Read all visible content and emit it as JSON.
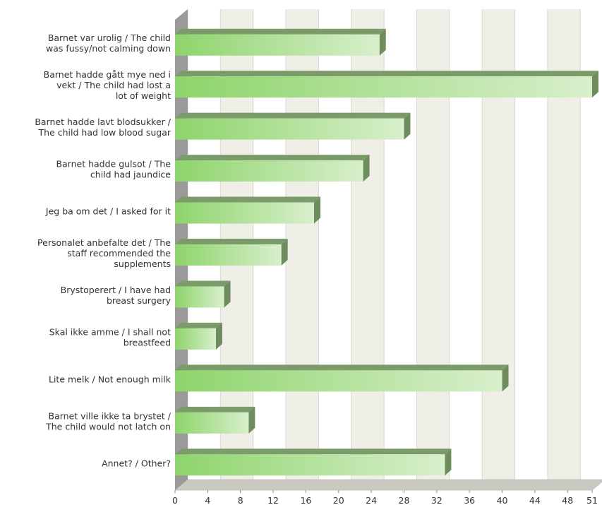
{
  "chart_data": {
    "type": "bar",
    "orientation": "horizontal",
    "style": "3d",
    "categories": [
      [
        "Barnet var urolig / The child",
        "was fussy/not calming down"
      ],
      [
        "Barnet hadde gått mye ned i",
        "vekt / The child had lost a",
        "lot of weight"
      ],
      [
        "Barnet hadde lavt blodsukker /",
        "The child had low blood sugar"
      ],
      [
        "Barnet hadde gulsot / The",
        "child had jaundice"
      ],
      [
        "Jeg ba om det / I asked for it"
      ],
      [
        "Personalet anbefalte det / The",
        "staff recommended the",
        "supplements"
      ],
      [
        "Brystoperert / I have had",
        "breast surgery"
      ],
      [
        "Skal ikke amme / I shall not",
        "breastfeed"
      ],
      [
        "Lite melk / Not enough milk"
      ],
      [
        "Barnet ville ikke ta brystet /",
        "The child would not latch on"
      ],
      [
        "Annet? / Other?"
      ]
    ],
    "values": [
      25,
      51,
      28,
      23,
      17,
      13,
      6,
      5,
      40,
      9,
      33
    ],
    "xticks": [
      "0",
      "4",
      "8",
      "12",
      "16",
      "20",
      "24",
      "28",
      "32",
      "36",
      "40",
      "44",
      "48",
      "51"
    ],
    "xlim": [
      0,
      51
    ],
    "grid": true,
    "colors": {
      "bar_light": "#d8efcc",
      "bar_dark": "#8ed46b",
      "bar_top": "#7c9b6a",
      "bar_side": "#6f8c5f",
      "band_alt": "#efefe8",
      "gridline": "#d9d9d2",
      "wall": "#9a9a9a",
      "floor": "#c9c9c2"
    }
  }
}
